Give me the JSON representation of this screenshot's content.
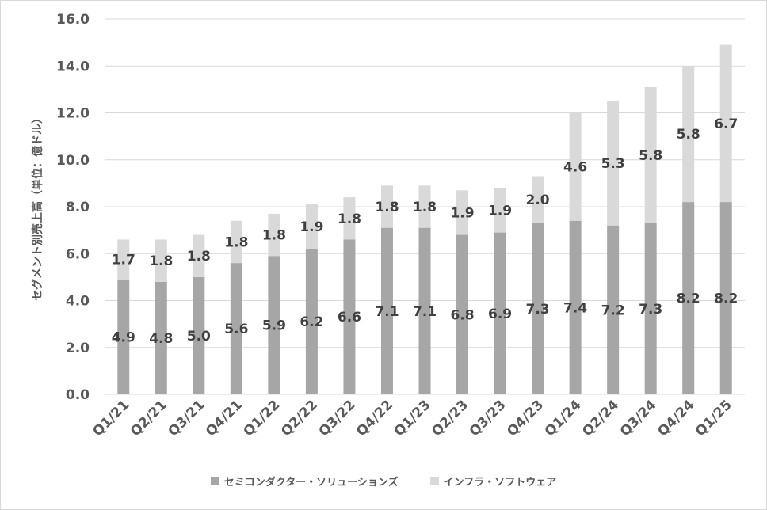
{
  "colors": {
    "semi": "#a6a6a6",
    "infra": "#d9d9d9",
    "grid": "#d9d9d9",
    "axis": "#595959"
  },
  "chart_data": {
    "type": "bar",
    "stacked": true,
    "categories": [
      "Q1/21",
      "Q2/21",
      "Q3/21",
      "Q4/21",
      "Q1/22",
      "Q2/22",
      "Q3/22",
      "Q4/22",
      "Q1/23",
      "Q2/23",
      "Q3/23",
      "Q4/23",
      "Q1/24",
      "Q2/24",
      "Q3/24",
      "Q4/24",
      "Q1/25"
    ],
    "series": [
      {
        "name": "セミコンダクター・ソリューションズ",
        "values": [
          4.9,
          4.8,
          5.0,
          5.6,
          5.9,
          6.2,
          6.6,
          7.1,
          7.1,
          6.8,
          6.9,
          7.3,
          7.4,
          7.2,
          7.3,
          8.2,
          8.2
        ]
      },
      {
        "name": "インフラ・ソフトウェア",
        "values": [
          1.7,
          1.8,
          1.8,
          1.8,
          1.8,
          1.9,
          1.8,
          1.8,
          1.8,
          1.9,
          1.9,
          2.0,
          4.6,
          5.3,
          5.8,
          5.8,
          6.7
        ]
      }
    ],
    "value_labels": [
      [
        "4.9",
        "4.8",
        "5.0",
        "5.6",
        "5.9",
        "6.2",
        "6.6",
        "7.1",
        "7.1",
        "6.8",
        "6.9",
        "7.3",
        "7.4",
        "7.2",
        "7.3",
        "8.2",
        "8.2"
      ],
      [
        "1.7",
        "1.8",
        "1.8",
        "1.8",
        "1.8",
        "1.9",
        "1.8",
        "1.8",
        "1.8",
        "1.9",
        "1.9",
        "2.0",
        "4.6",
        "5.3",
        "5.8",
        "5.8",
        "6.7"
      ]
    ],
    "ylabel": "セグメント別売上高（単位：億ドル）",
    "xlabel": "",
    "ylim": [
      0,
      16
    ],
    "yticks": [
      "0.0",
      "2.0",
      "4.0",
      "6.0",
      "8.0",
      "10.0",
      "12.0",
      "14.0",
      "16.0"
    ],
    "grid": true,
    "legend_position": "bottom"
  },
  "legend": {
    "items": [
      {
        "label": "セミコンダクター・ソリューションズ"
      },
      {
        "label": "インフラ・ソフトウェア"
      }
    ]
  }
}
